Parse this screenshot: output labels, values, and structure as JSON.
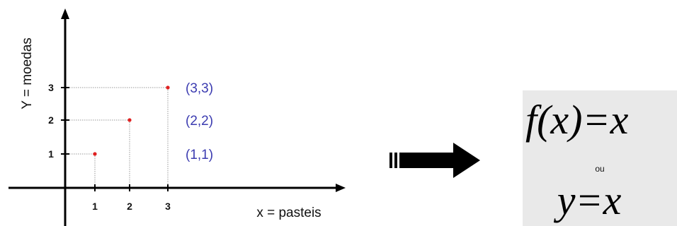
{
  "graph": {
    "y_axis_title": "Y = moedas",
    "x_axis_title": "x = pasteis",
    "x_ticks": [
      "1",
      "2",
      "3"
    ],
    "y_ticks": [
      "1",
      "2",
      "3"
    ],
    "points": [
      {
        "x": 1,
        "y": 1,
        "label": "(1,1)"
      },
      {
        "x": 2,
        "y": 2,
        "label": "(2,2)"
      },
      {
        "x": 3,
        "y": 3,
        "label": "(3,3)"
      }
    ],
    "point_color": "#e02020",
    "label_color": "#3b3bb0"
  },
  "formulas": {
    "function_form": "f(x)=x",
    "connector": "ou",
    "equation_form": "y=x"
  },
  "arrow": {
    "icon": "right-arrow-icon",
    "color": "#000000"
  }
}
